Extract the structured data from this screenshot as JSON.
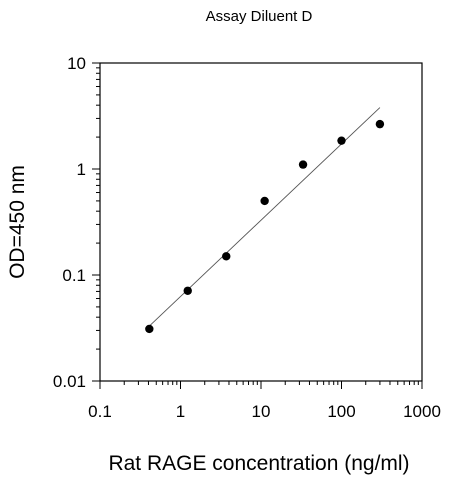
{
  "chart_data": {
    "type": "scatter",
    "title": "Assay Diluent D",
    "xlabel": "Rat RAGE concentration (ng/ml)",
    "ylabel": "OD=450 nm",
    "x_scale": "log",
    "y_scale": "log",
    "xlim": [
      0.1,
      1000
    ],
    "ylim": [
      0.01,
      10
    ],
    "x_ticks": [
      "0.1",
      "1",
      "10",
      "100",
      "1000"
    ],
    "y_ticks": [
      "0.01",
      "0.1",
      "1",
      "10"
    ],
    "grid": false,
    "legend": "none",
    "series": [
      {
        "points": [
          {
            "x": 0.41,
            "y": 0.031
          },
          {
            "x": 1.23,
            "y": 0.071
          },
          {
            "x": 3.7,
            "y": 0.15
          },
          {
            "x": 11.1,
            "y": 0.5
          },
          {
            "x": 33.3,
            "y": 1.1
          },
          {
            "x": 100,
            "y": 1.85
          },
          {
            "x": 300,
            "y": 2.65
          }
        ]
      }
    ],
    "fit_line": {
      "x": [
        0.41,
        300
      ],
      "y": [
        0.033,
        3.8
      ]
    }
  }
}
